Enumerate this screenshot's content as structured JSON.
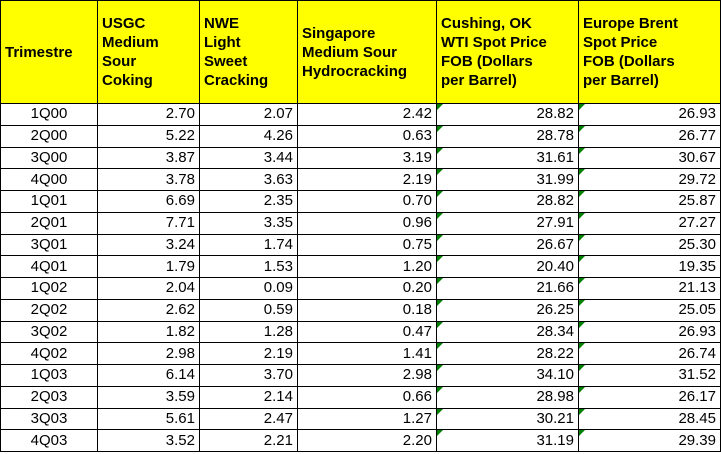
{
  "table": {
    "header": [
      "Trimestre",
      "USGC\nMedium\nSour\nCoking",
      "NWE\nLight\nSweet\nCracking",
      "Singapore\nMedium Sour\nHydrocracking",
      "Cushing, OK\nWTI Spot Price\nFOB (Dollars\nper Barrel)",
      "Europe Brent\nSpot Price\nFOB (Dollars\nper Barrel)"
    ],
    "rows": [
      [
        "1Q00",
        "2.70",
        "2.07",
        "2.42",
        "28.82",
        "26.93"
      ],
      [
        "2Q00",
        "5.22",
        "4.26",
        "0.63",
        "28.78",
        "26.77"
      ],
      [
        "3Q00",
        "3.87",
        "3.44",
        "3.19",
        "31.61",
        "30.67"
      ],
      [
        "4Q00",
        "3.78",
        "3.63",
        "2.19",
        "31.99",
        "29.72"
      ],
      [
        "1Q01",
        "6.69",
        "2.35",
        "0.70",
        "28.82",
        "25.87"
      ],
      [
        "2Q01",
        "7.71",
        "3.35",
        "0.96",
        "27.91",
        "27.27"
      ],
      [
        "3Q01",
        "3.24",
        "1.74",
        "0.75",
        "26.67",
        "25.30"
      ],
      [
        "4Q01",
        "1.79",
        "1.53",
        "1.20",
        "20.40",
        "19.35"
      ],
      [
        "1Q02",
        "2.04",
        "0.09",
        "0.20",
        "21.66",
        "21.13"
      ],
      [
        "2Q02",
        "2.62",
        "0.59",
        "0.18",
        "26.25",
        "25.05"
      ],
      [
        "3Q02",
        "1.82",
        "1.28",
        "0.47",
        "28.34",
        "26.93"
      ],
      [
        "4Q02",
        "2.98",
        "2.19",
        "1.41",
        "28.22",
        "26.74"
      ],
      [
        "1Q03",
        "6.14",
        "3.70",
        "2.98",
        "34.10",
        "31.52"
      ],
      [
        "2Q03",
        "3.59",
        "2.14",
        "0.66",
        "28.98",
        "26.17"
      ],
      [
        "3Q03",
        "5.61",
        "2.47",
        "1.27",
        "30.21",
        "28.45"
      ],
      [
        "4Q03",
        "3.52",
        "2.21",
        "2.20",
        "31.19",
        "29.39"
      ]
    ]
  }
}
